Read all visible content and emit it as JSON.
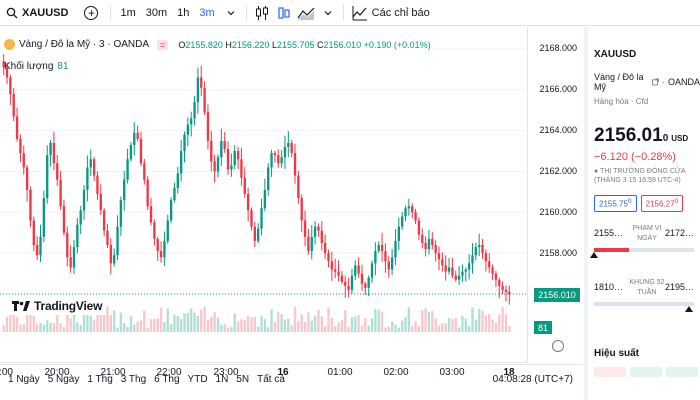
{
  "toolbar": {
    "symbol": "XAUUSD",
    "add_symbol": "+",
    "intervals": [
      "1m",
      "30m",
      "1h",
      "3m"
    ],
    "active_interval": "3m",
    "indicators_label": "Các chỉ báo"
  },
  "legend": {
    "title": "Vàng / Đô la Mỹ · 3 · OANDA",
    "badge": "=",
    "open_label": "O",
    "open": "2155.820",
    "high_label": "H",
    "high": "2156.220",
    "low_label": "L",
    "low": "2155.705",
    "close_label": "C",
    "close": "2156.010",
    "change": "+0.190 (+0.01%)",
    "volume_label": "Khối lượng",
    "volume": "81"
  },
  "price_axis": {
    "labels": [
      "2168.000",
      "2166.000",
      "2164.000",
      "2162.000",
      "2160.000",
      "2158.000",
      "2156.000"
    ],
    "current_price": "2156.010",
    "current_volume": "81"
  },
  "time_axis": {
    "labels": [
      ":00",
      "20:00",
      "21:00",
      "22:00",
      "23:00",
      "16",
      "01:00",
      "02:00",
      "03:00",
      "18"
    ]
  },
  "branding": {
    "name": "TradingView"
  },
  "bottombar": {
    "ranges": [
      "1 Ngày",
      "5 Ngày",
      "1 Thg",
      "3 Thg",
      "6 Thg",
      "YTD",
      "1N",
      "5N",
      "Tất cả"
    ],
    "clock": "04:08:28 (UTC+7)"
  },
  "panel": {
    "symbol": "XAUUSD",
    "name": "Vàng / Đô la Mỹ",
    "exchange": "OANDA",
    "category": "Hàng hóa · Cfd",
    "price_main": "2156.01",
    "price_sup": "0",
    "currency": "USD",
    "change": "−6.120 (−0.28%)",
    "market_status": "THỊ TRƯỜNG ĐÓNG CỬA",
    "market_time": "(THÁNG 3 15 16:59 UTC-4)",
    "bid": "2155.75",
    "bid_sup": "0",
    "ask": "2156.27",
    "ask_sup": "0",
    "day_low": "2155…",
    "day_label": "PHẠM VI NGÀY",
    "day_high": "2172…",
    "day_position": 0.35,
    "week_low": "1810…",
    "week_label": "KHUNG 52 TUẦN",
    "week_high": "2195…",
    "week_position": 0.95,
    "performance_label": "Hiệu suất"
  },
  "chart_data": {
    "type": "candlestick",
    "ylim": [
      2155.2,
      2168.8
    ],
    "up_color": "#089981",
    "down_color": "#f23645",
    "close_series": [
      2167.1,
      2166.6,
      2165.8,
      2164.7,
      2163.6,
      2162.9,
      2162.2,
      2161.1,
      2159.6,
      2158.4,
      2157.9,
      2158.8,
      2160.7,
      2162.8,
      2163.4,
      2162.4,
      2161.6,
      2160.3,
      2159.0,
      2157.8,
      2157.3,
      2158.3,
      2159.4,
      2160.1,
      2161.1,
      2162.2,
      2162.6,
      2161.8,
      2160.9,
      2160.1,
      2159.1,
      2158.4,
      2157.5,
      2157.9,
      2159.3,
      2160.6,
      2161.6,
      2162.6,
      2163.3,
      2163.9,
      2163.6,
      2162.4,
      2161.6,
      2160.3,
      2159.5,
      2158.7,
      2158.1,
      2157.8,
      2158.6,
      2159.6,
      2160.6,
      2161.2,
      2161.9,
      2163.0,
      2163.8,
      2164.3,
      2164.6,
      2165.4,
      2166.6,
      2166.1,
      2164.9,
      2163.5,
      2162.5,
      2162.0,
      2162.7,
      2163.5,
      2163.1,
      2162.1,
      2162.3,
      2163.0,
      2162.6,
      2161.7,
      2160.9,
      2160.1,
      2159.3,
      2158.6,
      2159.2,
      2160.2,
      2161.1,
      2162.2,
      2162.9,
      2162.8,
      2162.4,
      2162.7,
      2163.2,
      2163.4,
      2162.9,
      2161.8,
      2160.7,
      2159.6,
      2158.8,
      2158.1,
      2158.8,
      2159.3,
      2159.1,
      2158.5,
      2158.0,
      2157.6,
      2157.2,
      2157.1,
      2156.9,
      2156.6,
      2156.4,
      2156.2,
      2156.9,
      2157.4,
      2157.0,
      2156.5,
      2156.3,
      2156.8,
      2157.5,
      2158.1,
      2158.4,
      2158.1,
      2157.6,
      2157.2,
      2157.8,
      2158.6,
      2159.3,
      2159.8,
      2160.2,
      2160.3,
      2160.0,
      2159.6,
      2158.9,
      2158.5,
      2158.2,
      2158.7,
      2158.4,
      2158.0,
      2157.7,
      2157.4,
      2157.1,
      2157.3,
      2156.9,
      2156.7,
      2156.9,
      2157.1,
      2157.2,
      2157.5,
      2157.9,
      2158.3,
      2158.4,
      2158.0,
      2157.6,
      2157.3,
      2157.0,
      2156.7,
      2156.4,
      2156.2,
      2156.1,
      2156.0
    ]
  }
}
